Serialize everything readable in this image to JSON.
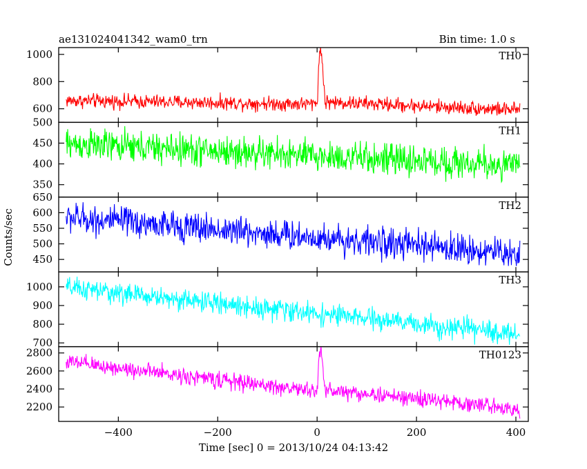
{
  "header": {
    "obs_id": "ae131024041342_wam0_trn",
    "bin_time": "Bin time: 1.0 s"
  },
  "chart_data": {
    "type": "line",
    "xlabel": "Time [sec] 0 = 2013/10/24 04:13:42",
    "ylabel": "Counts/sec",
    "xlim": [
      -520,
      425
    ],
    "x_ticks": [
      -400,
      -200,
      0,
      200,
      400
    ],
    "x_tick_labels": [
      "−400",
      "−200",
      "0",
      "200",
      "400"
    ],
    "x_range_data": [
      -505,
      408
    ],
    "panels": [
      {
        "name": "TH0",
        "color": "#ff0000",
        "ylim": [
          500,
          1050
        ],
        "y_ticks": [
          600,
          800,
          1000
        ],
        "trend": [
          {
            "x": -505,
            "y": 660
          },
          {
            "x": -10,
            "y": 635
          },
          {
            "x": 0,
            "y": 650
          },
          {
            "x": 4,
            "y": 950
          },
          {
            "x": 7,
            "y": 1050
          },
          {
            "x": 11,
            "y": 920
          },
          {
            "x": 16,
            "y": 650
          },
          {
            "x": 408,
            "y": 590
          }
        ],
        "noise": 26
      },
      {
        "name": "TH1",
        "color": "#00ff00",
        "ylim": [
          320,
          500
        ],
        "y_ticks": [
          350,
          400,
          450,
          500
        ],
        "trend": [
          {
            "x": -505,
            "y": 448
          },
          {
            "x": 408,
            "y": 395
          }
        ],
        "noise": 19
      },
      {
        "name": "TH2",
        "color": "#0000ff",
        "ylim": [
          410,
          650
        ],
        "y_ticks": [
          450,
          500,
          550,
          600,
          650
        ],
        "trend": [
          {
            "x": -505,
            "y": 585
          },
          {
            "x": 408,
            "y": 468
          }
        ],
        "noise": 24
      },
      {
        "name": "TH3",
        "color": "#00ffff",
        "ylim": [
          680,
          1080
        ],
        "y_ticks": [
          700,
          800,
          900,
          1000
        ],
        "trend": [
          {
            "x": -505,
            "y": 995
          },
          {
            "x": 408,
            "y": 745
          }
        ],
        "noise": 28
      },
      {
        "name": "TH0123",
        "color": "#ff00ff",
        "ylim": [
          2040,
          2870
        ],
        "y_ticks": [
          2200,
          2400,
          2600,
          2800
        ],
        "trend": [
          {
            "x": -505,
            "y": 2700
          },
          {
            "x": -10,
            "y": 2380
          },
          {
            "x": 0,
            "y": 2395
          },
          {
            "x": 4,
            "y": 2700
          },
          {
            "x": 7,
            "y": 2850
          },
          {
            "x": 11,
            "y": 2680
          },
          {
            "x": 16,
            "y": 2390
          },
          {
            "x": 408,
            "y": 2180
          }
        ],
        "noise": 45
      }
    ]
  }
}
